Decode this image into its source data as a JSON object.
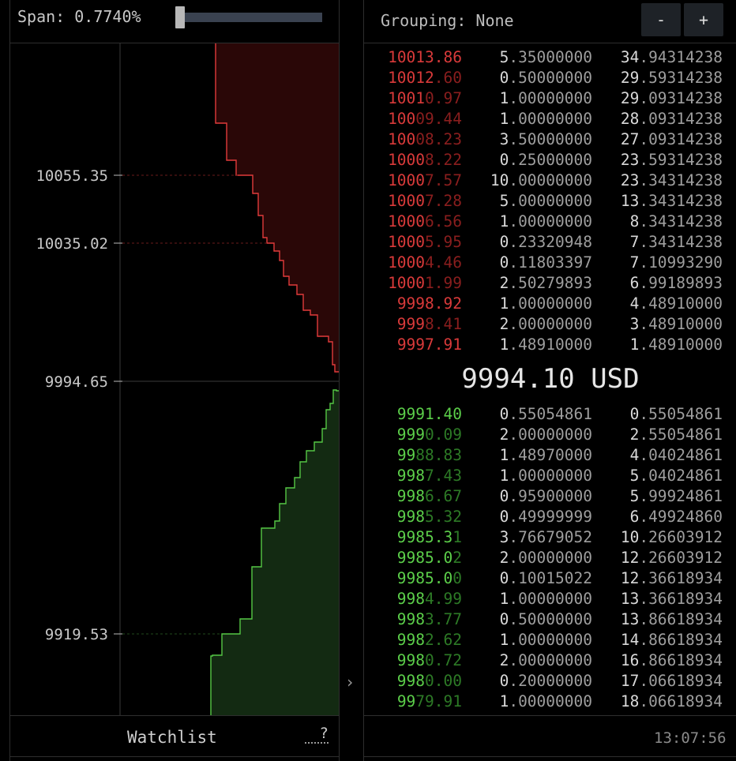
{
  "span": {
    "label": "Span:",
    "value": "0.7740%",
    "slider_fraction": 0.0
  },
  "depth_chart": {
    "y_ticks": [
      "10055.35",
      "10035.02",
      "9994.65",
      "9919.53"
    ],
    "ask_color": "#e23b3b",
    "ask_fill": "#2a0707",
    "bid_color": "#55c845",
    "bid_fill": "#132a12"
  },
  "footer": {
    "watchlist": "Watchlist",
    "help": "?",
    "collapse": "›",
    "clock": "13:07:56"
  },
  "orderbook": {
    "grouping_label": "Grouping:",
    "grouping_value": "None",
    "zoom_out": "-",
    "zoom_in": "+",
    "last_price": "9994.10 USD",
    "asks": [
      {
        "price_hi": "10013.86",
        "price_lo": "",
        "size_hi": "5",
        "size_lo": ".35000000",
        "total_hi": "34",
        "total_lo": ".94314238"
      },
      {
        "price_hi": "10012",
        "price_lo": ".60",
        "size_hi": "0",
        "size_lo": ".50000000",
        "total_hi": "29",
        "total_lo": ".59314238"
      },
      {
        "price_hi": "1001",
        "price_lo": "0.97",
        "size_hi": "1",
        "size_lo": ".00000000",
        "total_hi": "29",
        "total_lo": ".09314238"
      },
      {
        "price_hi": "100",
        "price_lo": "09.44",
        "size_hi": "1",
        "size_lo": ".00000000",
        "total_hi": "28",
        "total_lo": ".09314238"
      },
      {
        "price_hi": "100",
        "price_lo": "08.23",
        "size_hi": "3",
        "size_lo": ".50000000",
        "total_hi": "27",
        "total_lo": ".09314238"
      },
      {
        "price_hi": "1000",
        "price_lo": "8.22",
        "size_hi": "0",
        "size_lo": ".25000000",
        "total_hi": "23",
        "total_lo": ".59314238"
      },
      {
        "price_hi": "1000",
        "price_lo": "7.57",
        "size_hi": "10",
        "size_lo": ".00000000",
        "total_hi": "23",
        "total_lo": ".34314238"
      },
      {
        "price_hi": "1000",
        "price_lo": "7.28",
        "size_hi": "5",
        "size_lo": ".00000000",
        "total_hi": "13",
        "total_lo": ".34314238"
      },
      {
        "price_hi": "1000",
        "price_lo": "6.56",
        "size_hi": "1",
        "size_lo": ".00000000",
        "total_hi": "8",
        "total_lo": ".34314238"
      },
      {
        "price_hi": "1000",
        "price_lo": "5.95",
        "size_hi": "0",
        "size_lo": ".23320948",
        "total_hi": "7",
        "total_lo": ".34314238"
      },
      {
        "price_hi": "1000",
        "price_lo": "4.46",
        "size_hi": "0",
        "size_lo": ".11803397",
        "total_hi": "7",
        "total_lo": ".10993290"
      },
      {
        "price_hi": "1000",
        "price_lo": "1.99",
        "size_hi": "2",
        "size_lo": ".50279893",
        "total_hi": "6",
        "total_lo": ".99189893"
      },
      {
        "price_hi": "9998.92",
        "price_lo": "",
        "size_hi": "1",
        "size_lo": ".00000000",
        "total_hi": "4",
        "total_lo": ".48910000"
      },
      {
        "price_hi": "999",
        "price_lo": "8.41",
        "size_hi": "2",
        "size_lo": ".00000000",
        "total_hi": "3",
        "total_lo": ".48910000"
      },
      {
        "price_hi": "9997.91",
        "price_lo": "",
        "size_hi": "1",
        "size_lo": ".48910000",
        "total_hi": "1",
        "total_lo": ".48910000"
      }
    ],
    "bids": [
      {
        "price_hi": "9991.40",
        "price_lo": "",
        "size_hi": "0",
        "size_lo": ".55054861",
        "total_hi": "0",
        "total_lo": ".55054861"
      },
      {
        "price_hi": "999",
        "price_lo": "0.09",
        "size_hi": "2",
        "size_lo": ".00000000",
        "total_hi": "2",
        "total_lo": ".55054861"
      },
      {
        "price_hi": "99",
        "price_lo": "88.83",
        "size_hi": "1",
        "size_lo": ".48970000",
        "total_hi": "4",
        "total_lo": ".04024861"
      },
      {
        "price_hi": "998",
        "price_lo": "7.43",
        "size_hi": "1",
        "size_lo": ".00000000",
        "total_hi": "5",
        "total_lo": ".04024861"
      },
      {
        "price_hi": "998",
        "price_lo": "6.67",
        "size_hi": "0",
        "size_lo": ".95900000",
        "total_hi": "5",
        "total_lo": ".99924861"
      },
      {
        "price_hi": "998",
        "price_lo": "5.32",
        "size_hi": "0",
        "size_lo": ".49999999",
        "total_hi": "6",
        "total_lo": ".49924860"
      },
      {
        "price_hi": "9985.3",
        "price_lo": "1",
        "size_hi": "3",
        "size_lo": ".76679052",
        "total_hi": "10",
        "total_lo": ".26603912"
      },
      {
        "price_hi": "9985.0",
        "price_lo": "2",
        "size_hi": "2",
        "size_lo": ".00000000",
        "total_hi": "12",
        "total_lo": ".26603912"
      },
      {
        "price_hi": "9985.0",
        "price_lo": "0",
        "size_hi": "0",
        "size_lo": ".10015022",
        "total_hi": "12",
        "total_lo": ".36618934"
      },
      {
        "price_hi": "998",
        "price_lo": "4.99",
        "size_hi": "1",
        "size_lo": ".00000000",
        "total_hi": "13",
        "total_lo": ".36618934"
      },
      {
        "price_hi": "998",
        "price_lo": "3.77",
        "size_hi": "0",
        "size_lo": ".50000000",
        "total_hi": "13",
        "total_lo": ".86618934"
      },
      {
        "price_hi": "998",
        "price_lo": "2.62",
        "size_hi": "1",
        "size_lo": ".00000000",
        "total_hi": "14",
        "total_lo": ".86618934"
      },
      {
        "price_hi": "998",
        "price_lo": "0.72",
        "size_hi": "2",
        "size_lo": ".00000000",
        "total_hi": "16",
        "total_lo": ".86618934"
      },
      {
        "price_hi": "998",
        "price_lo": "0.00",
        "size_hi": "0",
        "size_lo": ".20000000",
        "total_hi": "17",
        "total_lo": ".06618934"
      },
      {
        "price_hi": "99",
        "price_lo": "79.91",
        "size_hi": "1",
        "size_lo": ".00000000",
        "total_hi": "18",
        "total_lo": ".06618934"
      }
    ]
  }
}
